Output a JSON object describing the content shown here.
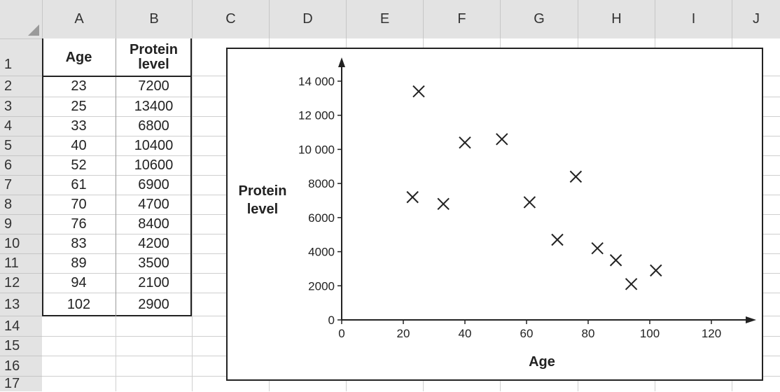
{
  "spreadsheet": {
    "column_headers": [
      "A",
      "B",
      "C",
      "D",
      "E",
      "F",
      "G",
      "H",
      "I",
      "J"
    ],
    "row_headers": [
      "1",
      "2",
      "3",
      "4",
      "5",
      "6",
      "7",
      "8",
      "9",
      "10",
      "11",
      "12",
      "13",
      "14",
      "15",
      "16",
      "17"
    ],
    "table": {
      "header_age": "Age",
      "header_protein_line1": "Protein",
      "header_protein_line2": "level",
      "rows": [
        {
          "age": "23",
          "protein": "7200"
        },
        {
          "age": "25",
          "protein": "13400"
        },
        {
          "age": "33",
          "protein": "6800"
        },
        {
          "age": "40",
          "protein": "10400"
        },
        {
          "age": "52",
          "protein": "10600"
        },
        {
          "age": "61",
          "protein": "6900"
        },
        {
          "age": "70",
          "protein": "4700"
        },
        {
          "age": "76",
          "protein": "8400"
        },
        {
          "age": "83",
          "protein": "4200"
        },
        {
          "age": "89",
          "protein": "3500"
        },
        {
          "age": "94",
          "protein": "2100"
        },
        {
          "age": "102",
          "protein": "2900"
        }
      ]
    }
  },
  "chart_data": {
    "type": "scatter",
    "title": "",
    "xlabel": "Age",
    "ylabel_line1": "Protein",
    "ylabel_line2": "level",
    "xlim": [
      0,
      125
    ],
    "ylim": [
      0,
      14800
    ],
    "x_ticks": [
      0,
      20,
      40,
      60,
      80,
      100,
      120
    ],
    "x_tick_labels": [
      "0",
      "20",
      "40",
      "60",
      "80",
      "100",
      "120"
    ],
    "y_ticks": [
      0,
      2000,
      4000,
      6000,
      8000,
      10000,
      12000,
      14000
    ],
    "y_tick_labels": [
      "0",
      "2000",
      "4000",
      "6000",
      "8000",
      "10 000",
      "12 000",
      "14 000"
    ],
    "marker": "x",
    "marker_color": "#222222",
    "grid": false,
    "points": [
      {
        "x": 23,
        "y": 7200
      },
      {
        "x": 25,
        "y": 13400
      },
      {
        "x": 33,
        "y": 6800
      },
      {
        "x": 40,
        "y": 10400
      },
      {
        "x": 52,
        "y": 10600
      },
      {
        "x": 61,
        "y": 6900
      },
      {
        "x": 70,
        "y": 4700
      },
      {
        "x": 76,
        "y": 8400
      },
      {
        "x": 83,
        "y": 4200
      },
      {
        "x": 89,
        "y": 3500
      },
      {
        "x": 94,
        "y": 2100
      },
      {
        "x": 102,
        "y": 2900
      }
    ]
  }
}
